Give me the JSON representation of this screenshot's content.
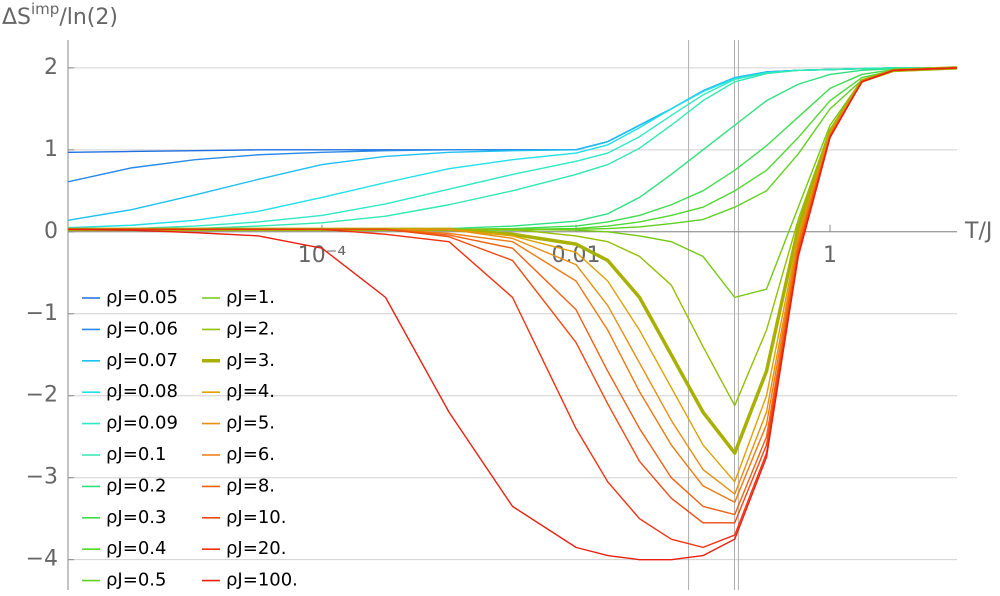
{
  "chart_data": {
    "type": "line",
    "ylabel": [
      "ΔS",
      "imp",
      "/ln(2)"
    ],
    "xlabel": "T/J",
    "log_x": true,
    "grid": true,
    "xlim": [
      1e-06,
      10
    ],
    "ylim": [
      -4.37,
      2.34
    ],
    "xticks": [
      {
        "value": 0.0001,
        "label": "10⁻⁴"
      },
      0.01,
      1
    ],
    "yticks": [
      {
        "value": -4,
        "label": "−4"
      },
      {
        "value": -3,
        "label": "−3"
      },
      {
        "value": -2,
        "label": "−2"
      },
      {
        "value": -1,
        "label": "−1"
      },
      0,
      1,
      2
    ],
    "vlines": [
      0.077,
      0.177,
      0.19
    ],
    "x": [
      1e-06,
      3.162e-06,
      1e-05,
      3.162e-05,
      0.0001,
      0.0003162,
      0.001,
      0.003162,
      0.01,
      0.01778,
      0.03162,
      0.05623,
      0.1,
      0.1778,
      0.3162,
      0.5623,
      1,
      1.778,
      3.162,
      10
    ],
    "series": [
      {
        "name": "ρJ=0.05",
        "color": "#1f6fe0",
        "values": [
          0.97,
          0.98,
          0.99,
          1.0,
          1.0,
          1.0,
          1.0,
          1.0,
          1.0,
          1.1,
          1.3,
          1.5,
          1.72,
          1.88,
          1.95,
          1.97,
          1.98,
          1.99,
          2.0,
          2.0
        ]
      },
      {
        "name": "ρJ=0.06",
        "color": "#2a8ae8",
        "values": [
          0.61,
          0.78,
          0.88,
          0.94,
          0.97,
          0.99,
          1.0,
          1.0,
          1.0,
          1.1,
          1.3,
          1.5,
          1.72,
          1.88,
          1.95,
          1.97,
          1.98,
          1.99,
          2.0,
          2.0
        ]
      },
      {
        "name": "ρJ=0.07",
        "color": "#1fc0f0",
        "values": [
          0.14,
          0.27,
          0.45,
          0.64,
          0.82,
          0.92,
          0.97,
          0.99,
          1.0,
          1.1,
          1.3,
          1.5,
          1.72,
          1.88,
          1.95,
          1.97,
          1.98,
          1.99,
          2.0,
          2.0
        ]
      },
      {
        "name": "ρJ=0.08",
        "color": "#20e0e8",
        "values": [
          0.05,
          0.08,
          0.14,
          0.25,
          0.42,
          0.6,
          0.77,
          0.88,
          0.96,
          1.06,
          1.27,
          1.5,
          1.71,
          1.87,
          1.94,
          1.97,
          1.98,
          1.99,
          2.0,
          2.0
        ]
      },
      {
        "name": "ρJ=0.09",
        "color": "#30e8c8",
        "values": [
          0.03,
          0.04,
          0.07,
          0.12,
          0.2,
          0.34,
          0.52,
          0.7,
          0.86,
          0.96,
          1.16,
          1.42,
          1.67,
          1.86,
          1.94,
          1.97,
          1.98,
          1.99,
          2.0,
          2.0
        ]
      },
      {
        "name": "ρJ=0.1",
        "color": "#30e8b0",
        "values": [
          0.02,
          0.03,
          0.04,
          0.07,
          0.11,
          0.19,
          0.33,
          0.5,
          0.7,
          0.82,
          1.02,
          1.3,
          1.6,
          1.83,
          1.93,
          1.97,
          1.98,
          1.99,
          2.0,
          2.0
        ]
      },
      {
        "name": "ρJ=0.2",
        "color": "#30e080",
        "values": [
          0.02,
          0.02,
          0.02,
          0.02,
          0.02,
          0.03,
          0.04,
          0.07,
          0.13,
          0.22,
          0.42,
          0.7,
          1.0,
          1.3,
          1.6,
          1.8,
          1.92,
          1.97,
          1.99,
          2.0
        ]
      },
      {
        "name": "ρJ=0.3",
        "color": "#40dc50",
        "values": [
          0.02,
          0.02,
          0.02,
          0.02,
          0.02,
          0.02,
          0.03,
          0.04,
          0.07,
          0.12,
          0.2,
          0.33,
          0.5,
          0.75,
          1.05,
          1.4,
          1.75,
          1.92,
          1.98,
          2.0
        ]
      },
      {
        "name": "ρJ=0.4",
        "color": "#50d830",
        "values": [
          0.02,
          0.02,
          0.02,
          0.02,
          0.02,
          0.02,
          0.02,
          0.03,
          0.04,
          0.07,
          0.12,
          0.2,
          0.3,
          0.5,
          0.75,
          1.15,
          1.6,
          1.88,
          1.97,
          2.0
        ]
      },
      {
        "name": "ρJ=0.5",
        "color": "#60d020",
        "values": [
          0.02,
          0.02,
          0.02,
          0.02,
          0.02,
          0.02,
          0.02,
          0.02,
          0.03,
          0.04,
          0.06,
          0.1,
          0.15,
          0.3,
          0.5,
          0.95,
          1.5,
          1.85,
          1.96,
          2.0
        ]
      },
      {
        "name": "ρJ=1.",
        "color": "#74c810",
        "values": [
          0.03,
          0.03,
          0.03,
          0.03,
          0.03,
          0.03,
          0.03,
          0.03,
          0.02,
          0.0,
          -0.05,
          -0.12,
          -0.3,
          -0.8,
          -0.7,
          0.3,
          1.3,
          1.85,
          1.97,
          2.0
        ]
      },
      {
        "name": "ρJ=2.",
        "color": "#92c000",
        "values": [
          0.03,
          0.03,
          0.03,
          0.03,
          0.03,
          0.03,
          0.03,
          0.03,
          -0.05,
          -0.12,
          -0.3,
          -0.65,
          -1.4,
          -2.12,
          -1.2,
          0.15,
          1.25,
          1.85,
          1.97,
          2.0
        ]
      },
      {
        "name": "ρJ=3.",
        "color": "#a8b000",
        "width": 3.5,
        "values": [
          0.03,
          0.03,
          0.03,
          0.03,
          0.03,
          0.03,
          0.03,
          -0.03,
          -0.15,
          -0.35,
          -0.8,
          -1.5,
          -2.2,
          -2.7,
          -1.7,
          0.05,
          1.22,
          1.84,
          1.97,
          2.0
        ]
      },
      {
        "name": "ρJ=4.",
        "color": "#e0a000",
        "values": [
          0.03,
          0.03,
          0.03,
          0.03,
          0.03,
          0.03,
          0.03,
          -0.05,
          -0.25,
          -0.6,
          -1.2,
          -1.9,
          -2.6,
          -3.05,
          -2.0,
          -0.05,
          1.2,
          1.84,
          1.97,
          2.0
        ]
      },
      {
        "name": "ρJ=5.",
        "color": "#e88e10",
        "values": [
          0.03,
          0.03,
          0.03,
          0.03,
          0.03,
          0.03,
          0.03,
          -0.08,
          -0.4,
          -0.9,
          -1.6,
          -2.3,
          -2.9,
          -3.2,
          -2.2,
          -0.1,
          1.2,
          1.84,
          1.97,
          2.0
        ]
      },
      {
        "name": "ρJ=6.",
        "color": "#f07810",
        "values": [
          0.03,
          0.03,
          0.03,
          0.03,
          0.03,
          0.03,
          -0.02,
          -0.12,
          -0.6,
          -1.2,
          -1.95,
          -2.6,
          -3.1,
          -3.3,
          -2.35,
          -0.15,
          1.18,
          1.83,
          1.97,
          2.0
        ]
      },
      {
        "name": "ρJ=8.",
        "color": "#f06010",
        "values": [
          0.03,
          0.03,
          0.03,
          0.03,
          0.03,
          0.03,
          -0.04,
          -0.2,
          -0.95,
          -1.7,
          -2.4,
          -3.0,
          -3.35,
          -3.45,
          -2.5,
          -0.2,
          1.17,
          1.83,
          1.97,
          2.0
        ]
      },
      {
        "name": "ρJ=10.",
        "color": "#f04a10",
        "values": [
          0.03,
          0.03,
          0.03,
          0.03,
          0.03,
          0.03,
          -0.06,
          -0.35,
          -1.35,
          -2.1,
          -2.8,
          -3.25,
          -3.55,
          -3.55,
          -2.6,
          -0.25,
          1.16,
          1.83,
          1.97,
          2.0
        ]
      },
      {
        "name": "ρJ=20.",
        "color": "#f03010",
        "values": [
          0.03,
          0.03,
          0.03,
          0.03,
          0.03,
          -0.03,
          -0.12,
          -0.8,
          -2.4,
          -3.05,
          -3.5,
          -3.75,
          -3.85,
          -3.7,
          -2.7,
          -0.3,
          1.15,
          1.83,
          1.97,
          2.0
        ]
      },
      {
        "name": "ρJ=100.",
        "color": "#e82010",
        "values": [
          0.03,
          0.02,
          -0.01,
          -0.05,
          -0.2,
          -0.8,
          -2.2,
          -3.35,
          -3.85,
          -3.95,
          -4.0,
          -4.0,
          -3.95,
          -3.75,
          -2.75,
          -0.3,
          1.15,
          1.83,
          1.97,
          2.0
        ]
      }
    ]
  }
}
